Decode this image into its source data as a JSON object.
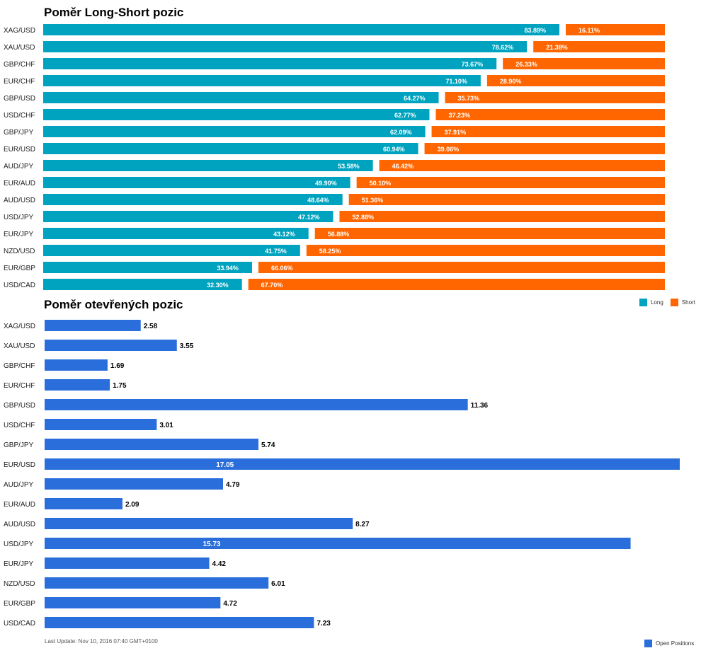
{
  "chart_data": [
    {
      "type": "bar",
      "title": "Poměr Long-Short pozic",
      "orientation": "horizontal",
      "stacked": true,
      "categories": [
        "XAG/USD",
        "XAU/USD",
        "GBP/CHF",
        "EUR/CHF",
        "GBP/USD",
        "USD/CHF",
        "GBP/JPY",
        "EUR/USD",
        "AUD/JPY",
        "EUR/AUD",
        "AUD/USD",
        "USD/JPY",
        "EUR/JPY",
        "NZD/USD",
        "EUR/GBP",
        "USD/CAD"
      ],
      "series": [
        {
          "name": "Long",
          "color": "#00a3bf",
          "values": [
            83.89,
            78.62,
            73.67,
            71.1,
            64.27,
            62.77,
            62.09,
            60.94,
            53.58,
            49.9,
            48.64,
            47.12,
            43.12,
            41.75,
            33.94,
            32.3
          ],
          "labels": [
            "83.89%",
            "78.62%",
            "73.67%",
            "71.10%",
            "64.27%",
            "62.77%",
            "62.09%",
            "60.94%",
            "53.58%",
            "49.90%",
            "48.64%",
            "47.12%",
            "43.12%",
            "41.75%",
            "33.94%",
            "32.30%"
          ]
        },
        {
          "name": "Short",
          "color": "#ff6600",
          "values": [
            16.11,
            21.38,
            26.33,
            28.9,
            35.73,
            37.23,
            37.91,
            39.06,
            46.42,
            50.1,
            51.36,
            52.88,
            56.88,
            58.25,
            66.06,
            67.7
          ],
          "labels": [
            "16.11%",
            "21.38%",
            "26.33%",
            "28.90%",
            "35.73%",
            "37.23%",
            "37.91%",
            "39.06%",
            "46.42%",
            "50.10%",
            "51.36%",
            "52.88%",
            "56.88%",
            "58.25%",
            "66.06%",
            "67.70%"
          ]
        }
      ],
      "legend": "bottom-right",
      "grid": false
    },
    {
      "type": "bar",
      "title": "Poměr otevřených pozic",
      "orientation": "horizontal",
      "categories": [
        "XAG/USD",
        "XAU/USD",
        "GBP/CHF",
        "EUR/CHF",
        "GBP/USD",
        "USD/CHF",
        "GBP/JPY",
        "EUR/USD",
        "AUD/JPY",
        "EUR/AUD",
        "AUD/USD",
        "USD/JPY",
        "EUR/JPY",
        "NZD/USD",
        "EUR/GBP",
        "USD/CAD"
      ],
      "series": [
        {
          "name": "Open Positions",
          "color": "#2a6edb",
          "values": [
            2.58,
            3.55,
            1.69,
            1.75,
            11.36,
            3.01,
            5.74,
            17.05,
            4.79,
            2.09,
            8.27,
            15.73,
            4.42,
            6.01,
            4.72,
            7.23
          ],
          "labels": [
            "2.58",
            "3.55",
            "1.69",
            "1.75",
            "11.36",
            "3.01",
            "5.74",
            "17.05",
            "4.79",
            "2.09",
            "8.27",
            "15.73",
            "4.42",
            "6.01",
            "4.72",
            "7.23"
          ]
        }
      ],
      "xlim": [
        0,
        17.05
      ],
      "legend": "bottom-right",
      "grid": false
    }
  ],
  "legend_top": {
    "long": "Long",
    "short": "Short"
  },
  "legend_bottom": {
    "open": "Open Positions"
  },
  "footnote": "Last Update: Nov 10, 2016 07:40 GMT+0100"
}
